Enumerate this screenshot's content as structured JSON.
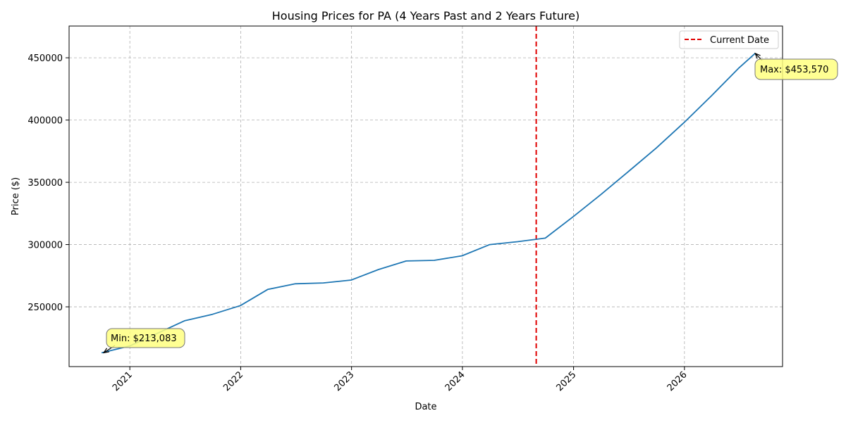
{
  "chart_data": {
    "type": "line",
    "title": "Housing Prices for PA (4 Years Past and 2 Years Future)",
    "xlabel": "Date",
    "ylabel": "Price ($)",
    "xlim": [
      "2020-06-15",
      "2026-11-20"
    ],
    "ylim": [
      202000,
      475500
    ],
    "grid": true,
    "legend_position": "top-right",
    "x_ticks": [
      {
        "date": "2021-01-01",
        "label": "2021"
      },
      {
        "date": "2022-01-01",
        "label": "2022"
      },
      {
        "date": "2023-01-01",
        "label": "2023"
      },
      {
        "date": "2024-01-01",
        "label": "2024"
      },
      {
        "date": "2025-01-01",
        "label": "2025"
      },
      {
        "date": "2026-01-01",
        "label": "2026"
      }
    ],
    "y_ticks": [
      {
        "value": 250000,
        "label": "250000"
      },
      {
        "value": 300000,
        "label": "300000"
      },
      {
        "value": 350000,
        "label": "350000"
      },
      {
        "value": 400000,
        "label": "400000"
      },
      {
        "value": 450000,
        "label": "450000"
      }
    ],
    "series": [
      {
        "color": "#1f77b4",
        "points": [
          {
            "x": "2020-09-30",
            "y": 213083
          },
          {
            "x": "2020-12-31",
            "y": 218500
          },
          {
            "x": "2021-03-31",
            "y": 228500
          },
          {
            "x": "2021-06-30",
            "y": 238800
          },
          {
            "x": "2021-09-30",
            "y": 244000
          },
          {
            "x": "2021-12-31",
            "y": 251000
          },
          {
            "x": "2022-03-31",
            "y": 264000
          },
          {
            "x": "2022-06-30",
            "y": 268500
          },
          {
            "x": "2022-09-30",
            "y": 269200
          },
          {
            "x": "2022-12-31",
            "y": 271500
          },
          {
            "x": "2023-03-31",
            "y": 280000
          },
          {
            "x": "2023-06-30",
            "y": 286800
          },
          {
            "x": "2023-09-30",
            "y": 287300
          },
          {
            "x": "2023-12-31",
            "y": 291000
          },
          {
            "x": "2024-03-31",
            "y": 300000
          },
          {
            "x": "2024-06-30",
            "y": 302300
          },
          {
            "x": "2024-09-30",
            "y": 305200
          },
          {
            "x": "2024-12-31",
            "y": 322500
          },
          {
            "x": "2025-03-31",
            "y": 340000
          },
          {
            "x": "2025-06-30",
            "y": 358500
          },
          {
            "x": "2025-09-30",
            "y": 377500
          },
          {
            "x": "2025-12-31",
            "y": 398000
          },
          {
            "x": "2026-03-31",
            "y": 419500
          },
          {
            "x": "2026-06-30",
            "y": 442000
          },
          {
            "x": "2026-08-22",
            "y": 453570
          }
        ]
      }
    ],
    "reference_line": {
      "label": "Current Date",
      "x": "2024-08-31",
      "color": "#e00000",
      "style": "dashed"
    },
    "annotations": [
      {
        "text": "Min: $213,083",
        "x": "2020-09-30",
        "y": 213083,
        "box_color": "#ffff80"
      },
      {
        "text": "Max: $453,570",
        "x": "2026-08-22",
        "y": 453570,
        "box_color": "#ffff80"
      }
    ]
  }
}
